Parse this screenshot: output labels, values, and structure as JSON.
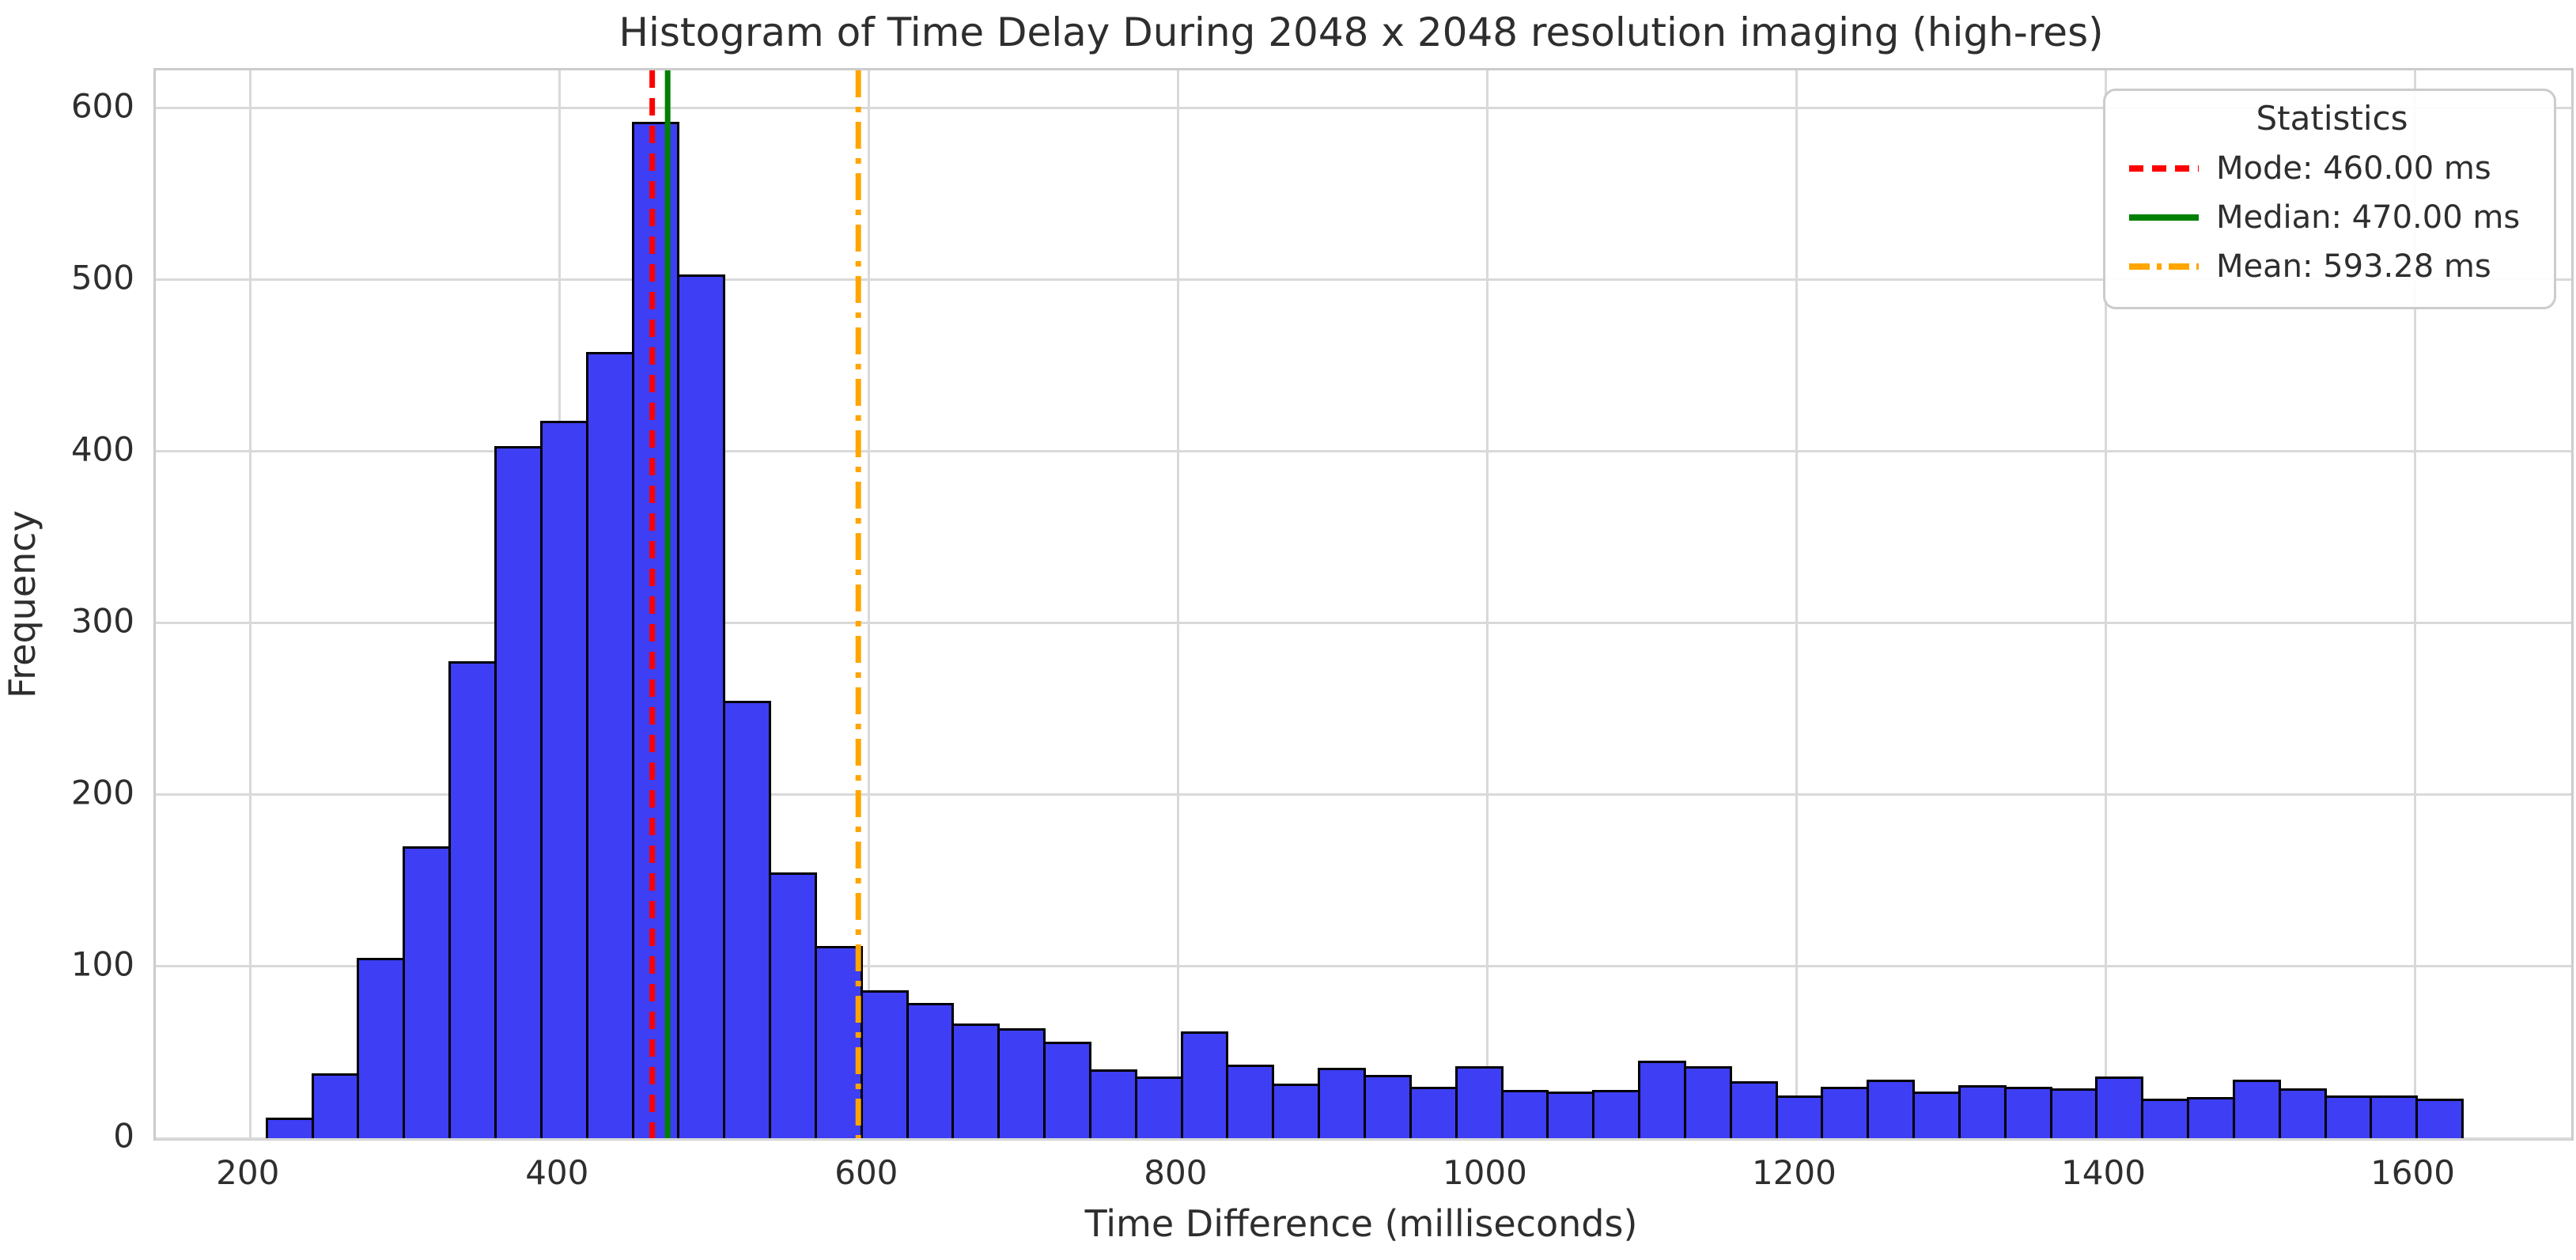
{
  "chart_data": {
    "type": "bar",
    "subtype": "histogram",
    "title": "Histogram of Time Delay During 2048 x 2048 resolution imaging (high-res)",
    "xlabel": "Time Difference (milliseconds)",
    "ylabel": "Frequency",
    "bin_start": 210,
    "bin_width": 29.5833,
    "values": [
      12,
      38,
      105,
      170,
      278,
      403,
      418,
      458,
      592,
      503,
      255,
      155,
      112,
      86,
      79,
      67,
      64,
      56,
      40,
      36,
      62,
      43,
      32,
      41,
      37,
      30,
      42,
      28,
      27,
      28,
      45,
      42,
      33,
      25,
      30,
      34,
      27,
      31,
      30,
      29,
      36,
      23,
      24,
      34,
      29,
      25,
      25,
      23
    ],
    "x_ticks": [
      "200",
      "400",
      "600",
      "800",
      "1000",
      "1200",
      "1400",
      "1600"
    ],
    "x_tick_values": [
      200,
      400,
      600,
      800,
      1000,
      1200,
      1400,
      1600
    ],
    "y_ticks": [
      "0",
      "100",
      "200",
      "300",
      "400",
      "500",
      "600"
    ],
    "y_tick_values": [
      0,
      100,
      200,
      300,
      400,
      500,
      600
    ],
    "xlim": [
      139,
      1701
    ],
    "ylim": [
      0,
      622
    ],
    "grid": true,
    "legend_title": "Statistics",
    "legend_position": "upper right",
    "stat_lines": [
      {
        "name": "mode-line",
        "label": "Mode: 460.00 ms",
        "value": 460,
        "color": "#ff0000",
        "style": "dashed"
      },
      {
        "name": "median-line",
        "label": "Median: 470.00 ms",
        "value": 470,
        "color": "#008000",
        "style": "solid"
      },
      {
        "name": "mean-line",
        "label": "Mean: 593.28 ms",
        "value": 593.28,
        "color": "#ffa500",
        "style": "dashdot"
      }
    ],
    "colors": {
      "bar_fill": "#3e3ef4",
      "bar_edge": "#000000",
      "grid": "#d9d9d9",
      "spine": "#cccccc",
      "text": "#2e2e2e"
    }
  }
}
